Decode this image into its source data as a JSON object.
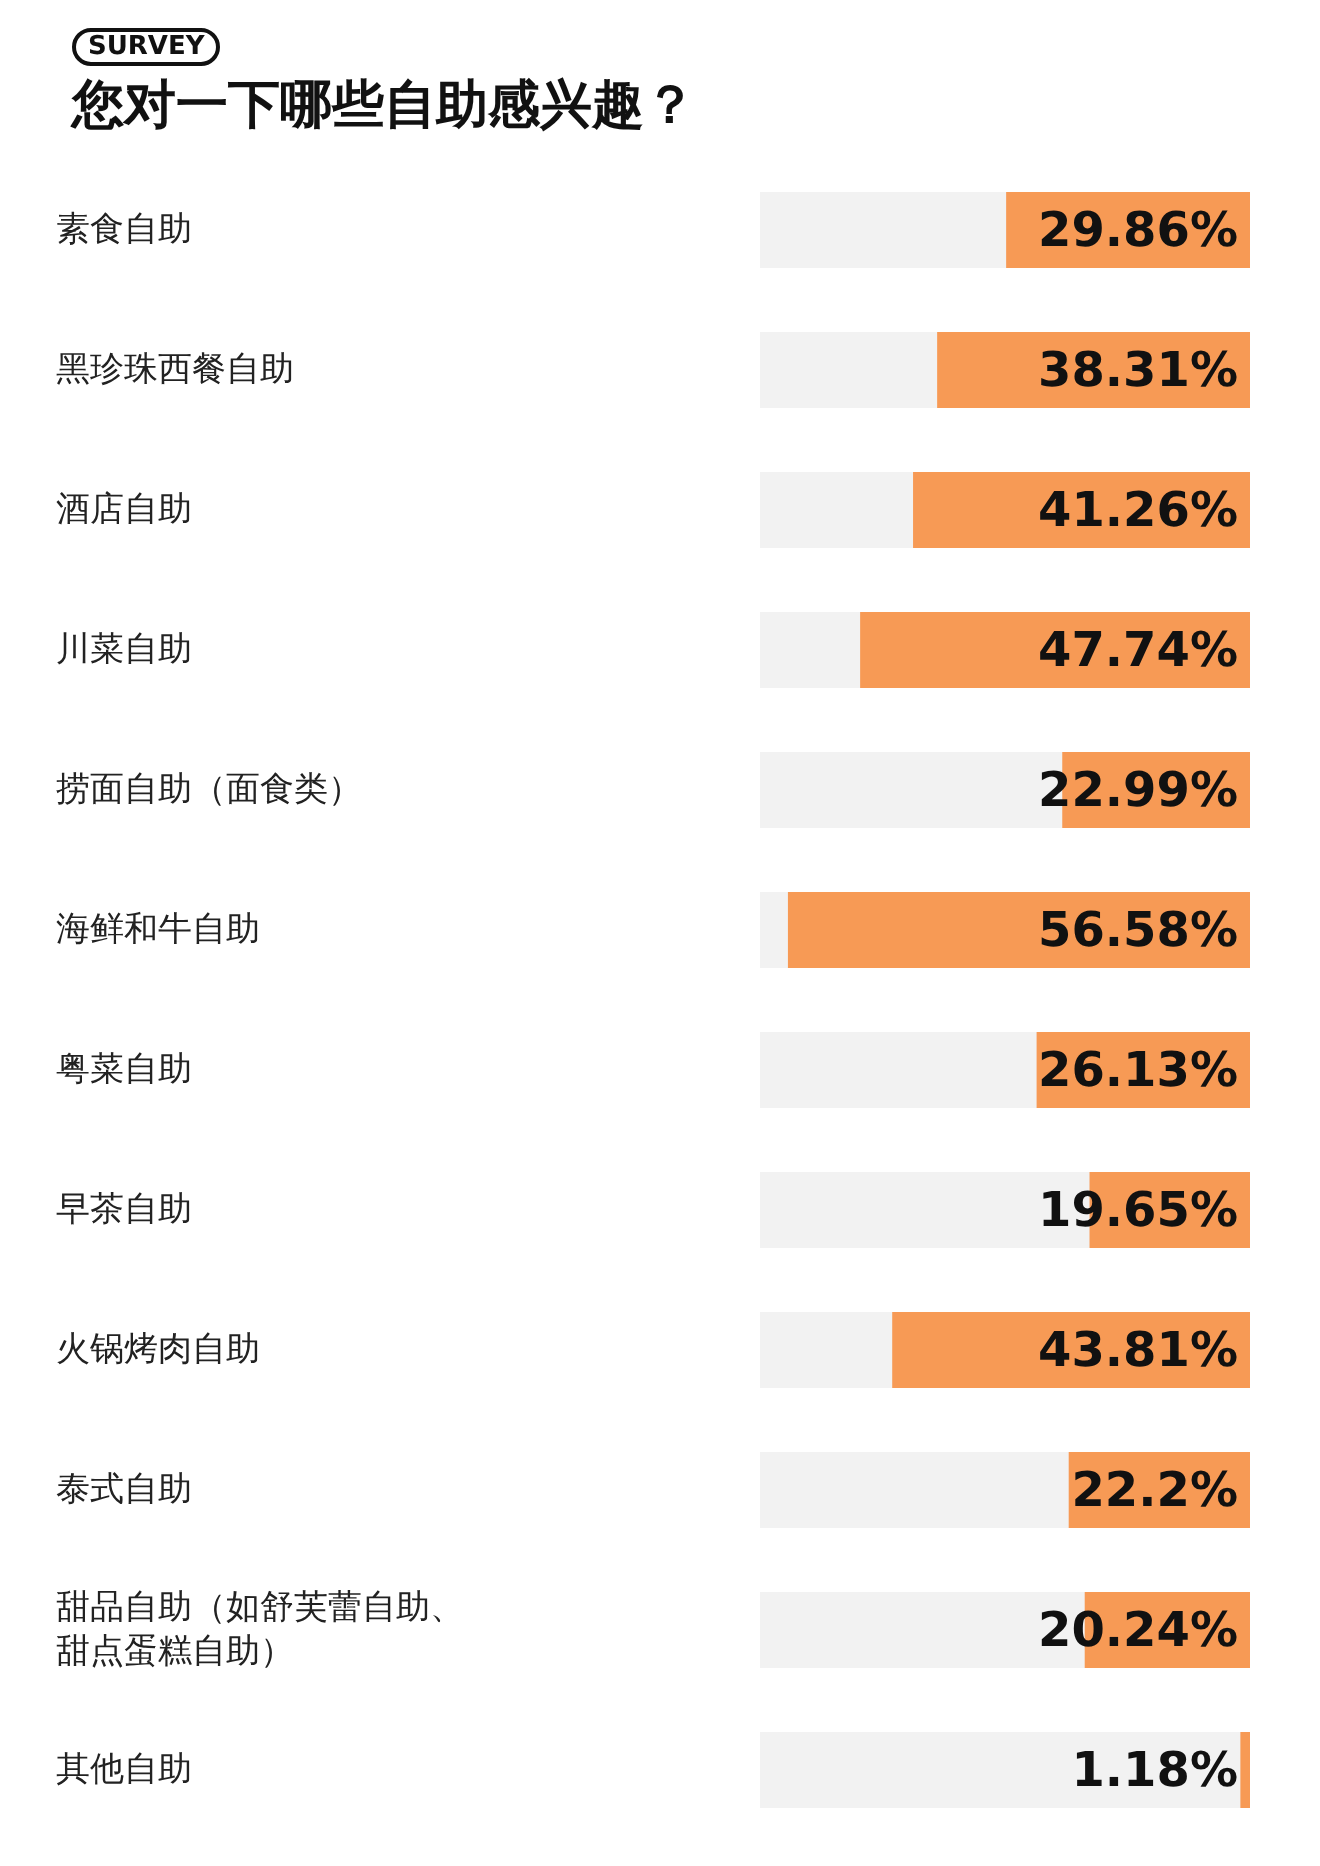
{
  "chart_data": {
    "type": "bar",
    "orientation": "horizontal",
    "subtitle": "SURVEY",
    "title": "您对一下哪些自助感兴趣？",
    "categories": [
      "素食自助",
      "黑珍珠西餐自助",
      "酒店自助",
      "川菜自助",
      "捞面自助（面食类）",
      "海鲜和牛自助",
      "粤菜自助",
      "早茶自助",
      "火锅烤肉自助",
      "泰式自助",
      "甜品自助（如舒芙蕾自助、甜点蛋糕自助）",
      "其他自助"
    ],
    "values": [
      29.86,
      38.31,
      41.26,
      47.74,
      22.99,
      56.58,
      26.13,
      19.65,
      43.81,
      22.2,
      20.24,
      1.18
    ],
    "value_labels": [
      "29.86%",
      "38.31%",
      "41.26%",
      "47.74%",
      "22.99%",
      "56.58%",
      "26.13%",
      "19.65%",
      "43.81%",
      "22.2%",
      "20.24%",
      "1.18%"
    ],
    "color": "#f79a55",
    "xlim": [
      60,
      0
    ],
    "tick_labels": false,
    "grid": false,
    "legend": false
  }
}
